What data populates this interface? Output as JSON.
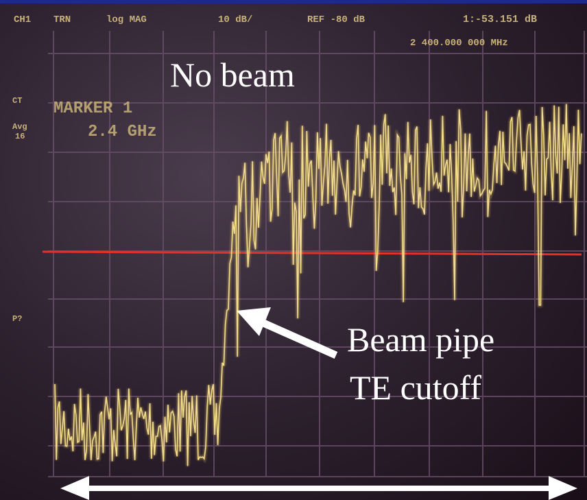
{
  "screen": {
    "header": {
      "channel": "CH1",
      "mode": "TRN",
      "format": "log MAG",
      "scale": "10 dB/",
      "reference": "REF -80 dB",
      "marker_readout": "1:-53.151 dB"
    },
    "frequency": "2 400.000 000 MHz",
    "side_labels": [
      "CT",
      "Avg",
      "16",
      "P?"
    ],
    "marker": {
      "title": "MARKER 1",
      "value": "2.4 GHz"
    }
  },
  "annotations": {
    "top": "No beam",
    "arrow_label": [
      "Beam pipe",
      "TE cutoff"
    ]
  }
}
